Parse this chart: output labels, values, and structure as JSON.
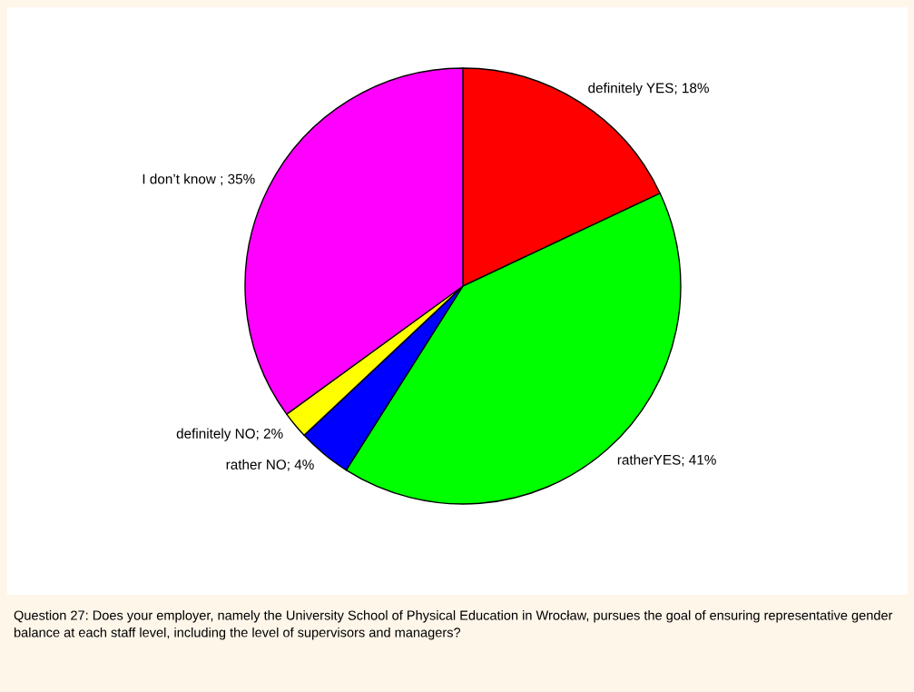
{
  "chart_data": {
    "type": "pie",
    "categories": [
      "definitely YES; 18%",
      "ratherYES; 41%",
      "rather NO; 4%",
      "definitely NO; 2%",
      "I don’t know ; 35%"
    ],
    "values": [
      18,
      41,
      4,
      2,
      35
    ],
    "colors": [
      "#ff0000",
      "#00ff00",
      "#0000ff",
      "#ffff00",
      "#ff00ff"
    ],
    "annotations": [
      "Question 27: Does your employer, namely the University School of Physical Education in Wrocław, pursues the goal of ensuring representative gender balance at each staff level, including the level of supervisors and managers?"
    ]
  }
}
